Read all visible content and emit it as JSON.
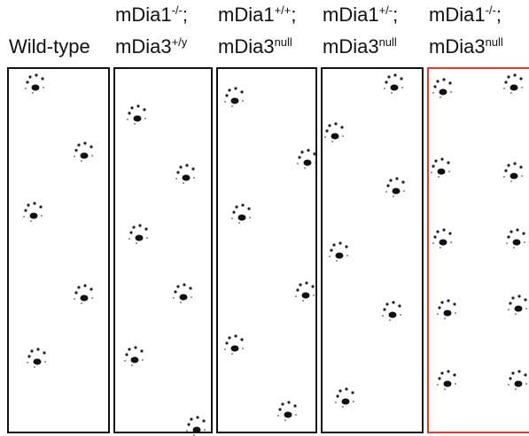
{
  "panels": [
    {
      "line2": {
        "base": "Wild-type"
      }
    },
    {
      "line1": {
        "base": "mDia1",
        "sup": "-/-",
        "after": ";"
      },
      "line2": {
        "base": "mDia3",
        "sup": "+/y"
      }
    },
    {
      "line1": {
        "base": "mDia1",
        "sup": "+/+",
        "after": ";"
      },
      "line2": {
        "base": "mDia3",
        "sup": "null"
      }
    },
    {
      "line1": {
        "base": "mDia1",
        "sup": "+/-",
        "after": ";"
      },
      "line2": {
        "base": "mDia3",
        "sup": "null"
      }
    },
    {
      "line1": {
        "base": "mDia1",
        "sup": "-/-",
        "after": ";"
      },
      "line2": {
        "base": "mDia3",
        "sup": "null"
      }
    }
  ]
}
